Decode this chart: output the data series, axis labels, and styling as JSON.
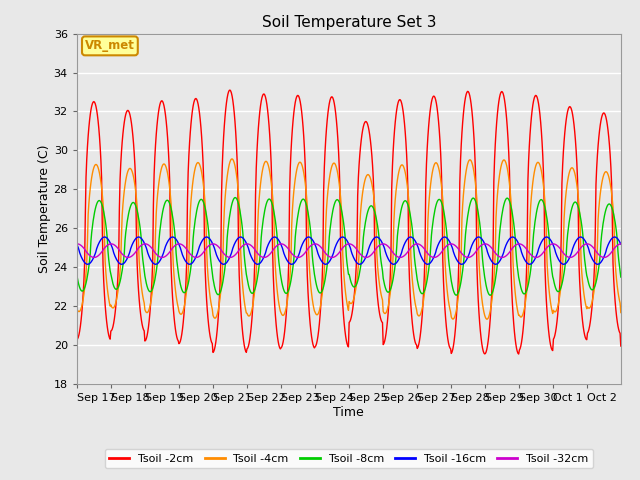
{
  "title": "Soil Temperature Set 3",
  "xlabel": "Time",
  "ylabel": "Soil Temperature (C)",
  "ylim": [
    18,
    36
  ],
  "yticks": [
    18,
    20,
    22,
    24,
    26,
    28,
    30,
    32,
    34,
    36
  ],
  "x_tick_labels": [
    "Sep 17",
    "Sep 18",
    "Sep 19",
    "Sep 20",
    "Sep 21",
    "Sep 22",
    "Sep 23",
    "Sep 24",
    "Sep 25",
    "Sep 26",
    "Sep 27",
    "Sep 28",
    "Sep 29",
    "Sep 30",
    "Oct 1",
    "Oct 2"
  ],
  "background_color": "#e8e8e8",
  "plot_bg_color": "#e8e8e8",
  "line_colors": {
    "Tsoil -2cm": "#ff0000",
    "Tsoil -4cm": "#ff8c00",
    "Tsoil -8cm": "#00cc00",
    "Tsoil -16cm": "#0000ff",
    "Tsoil -32cm": "#cc00cc"
  },
  "annotation_text": "VR_met",
  "annotation_color": "#cc8800",
  "annotation_bg": "#ffff99"
}
